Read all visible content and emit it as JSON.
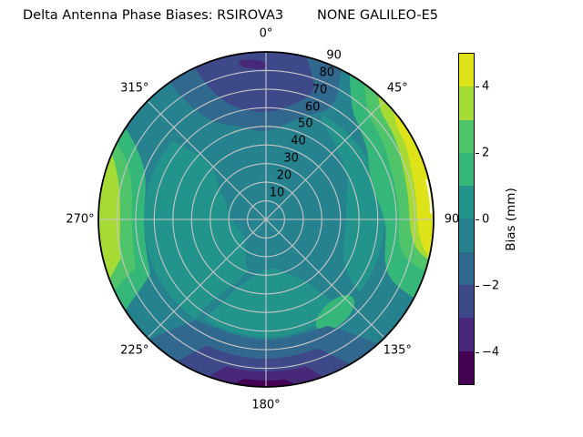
{
  "title": "Delta Antenna Phase Biases: RSIROVA3        NONE GALILEO-E5",
  "chart_data": {
    "type": "polar_contour",
    "title": "Delta Antenna Phase Biases: RSIROVA3        NONE GALILEO-E5",
    "station": "RSIROVA3",
    "signal": "NONE GALILEO-E5",
    "azimuth_ticks": [
      {
        "label": "0°",
        "deg": 0
      },
      {
        "label": "45°",
        "deg": 45
      },
      {
        "label": "90",
        "deg": 90
      },
      {
        "label": "135°",
        "deg": 135
      },
      {
        "label": "180°",
        "deg": 180
      },
      {
        "label": "225°",
        "deg": 225
      },
      {
        "label": "270°",
        "deg": 270
      },
      {
        "label": "315°",
        "deg": 315
      }
    ],
    "radial_ticks": [
      "10",
      "20",
      "30",
      "40",
      "50",
      "60",
      "70",
      "80",
      "90"
    ],
    "radial_axis_max": 90,
    "radial_label_angle_deg": 22.5,
    "levels": [
      -5,
      -4,
      -3,
      -2,
      -1,
      0,
      1,
      2,
      3,
      4,
      5
    ],
    "band_colors": [
      "#440154",
      "#482878",
      "#3e4989",
      "#31688e",
      "#26828e",
      "#22948c",
      "#35b779",
      "#50c46a",
      "#a6da35",
      "#dde318"
    ],
    "grid_color": "#c6c6c6",
    "outline_color": "#000000",
    "background_color": "#ffffff",
    "white_gap_color": "#ffffff",
    "colorbar": {
      "label": "Bias (mm)",
      "min": -5,
      "max": 5,
      "ticks": [
        {
          "label": "4",
          "value": 4
        },
        {
          "label": "2",
          "value": 2
        },
        {
          "label": "0",
          "value": 0
        },
        {
          "label": "−2",
          "value": -2
        },
        {
          "label": "−4",
          "value": -4
        }
      ]
    },
    "regions": [
      {
        "area": "north, az 325–25°, outer radii 55–90",
        "bias_mm": "-2 to -3 (blue patch)"
      },
      {
        "area": "north zenith edge, az 350–5°, radius ~85",
        "bias_mm": "-3 to -4 (indigo blob)"
      },
      {
        "area": "east edge, az 50–103°",
        "bias_mm": "+4 to +5 (bright yellow rim, green rings inward)"
      },
      {
        "area": "west edge, az 249–293°",
        "bias_mm": "+3 to +4 (yellow-green rim, green rings inward)"
      },
      {
        "area": "south edge, az 140–225°",
        "bias_mm": "-2 to -5 (nested blue/indigo bands, purple sliver at 170–190°)"
      },
      {
        "area": "center and west mid-field",
        "bias_mm": "0 to +1 (teal-green)"
      },
      {
        "area": "diagonal swath NW through center to SE",
        "bias_mm": "-1 to 0 (darker teal)"
      },
      {
        "area": "south-east mid-field blob, az ~135–155°, radius ~60",
        "bias_mm": "+1 to +2 (green)"
      }
    ]
  }
}
